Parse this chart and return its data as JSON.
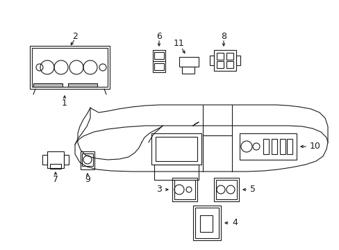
{
  "bg_color": "#ffffff",
  "line_color": "#1a1a1a",
  "fig_width": 4.89,
  "fig_height": 3.6,
  "dpi": 100,
  "gray": "#888888",
  "light_gray": "#bbbbbb"
}
